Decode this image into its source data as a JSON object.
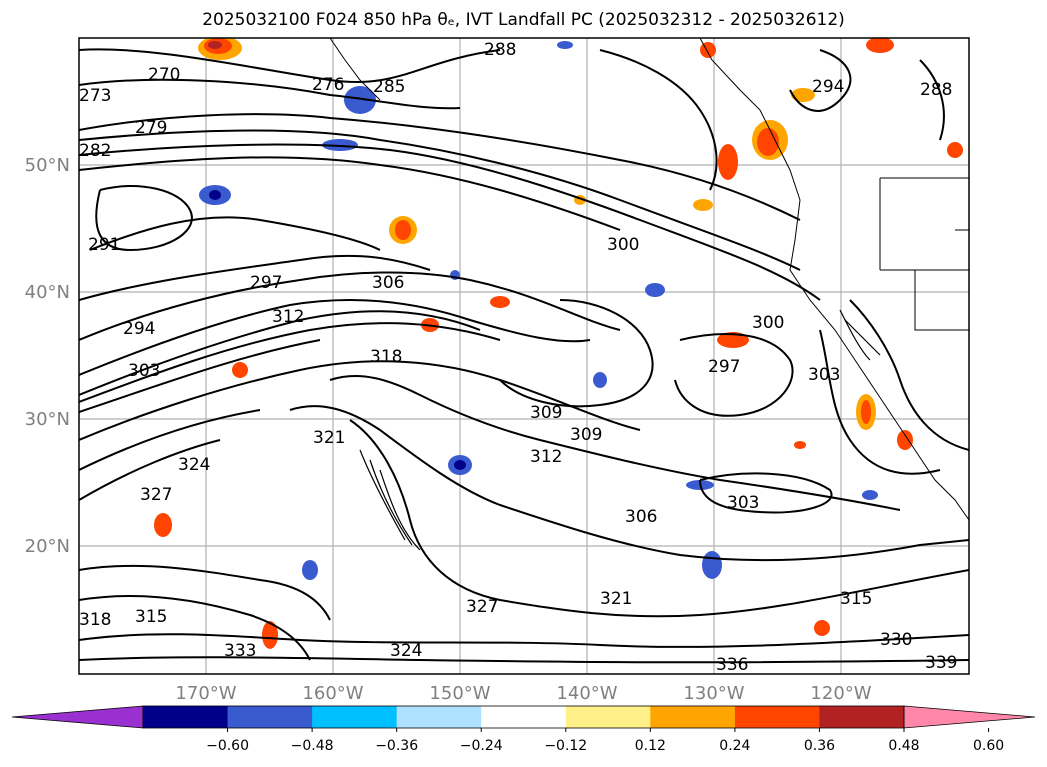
{
  "title": "2025032100 F024 850 hPa θₑ, IVT Landfall PC (2025032312 - 2025032612)",
  "map": {
    "lat_labels": [
      "50°N",
      "40°N",
      "30°N",
      "20°N"
    ],
    "lon_labels": [
      "170°W",
      "160°W",
      "150°W",
      "140°W",
      "130°W",
      "120°W"
    ],
    "contour_labels": [
      "270",
      "279",
      "273",
      "282",
      "291",
      "294",
      "297",
      "303",
      "306",
      "312",
      "300",
      "288",
      "285",
      "294",
      "288",
      "276",
      "318",
      "309",
      "321",
      "324",
      "327",
      "315",
      "333",
      "336",
      "330",
      "339",
      "303",
      "297",
      "306",
      "312",
      "309",
      "321",
      "324",
      "327",
      "315",
      "318",
      "303",
      "300"
    ]
  },
  "colorbar": {
    "ticks": [
      "−0.60",
      "−0.48",
      "−0.36",
      "−0.24",
      "−0.12",
      "0.12",
      "0.24",
      "0.36",
      "0.48",
      "0.60"
    ],
    "colors": [
      "#9b30d0",
      "#00008b",
      "#3a5bd0",
      "#00bfff",
      "#b0e0ff",
      "#ffffff",
      "#fff08a",
      "#ffa500",
      "#ff4500",
      "#b22222",
      "#ff88aa"
    ]
  }
}
